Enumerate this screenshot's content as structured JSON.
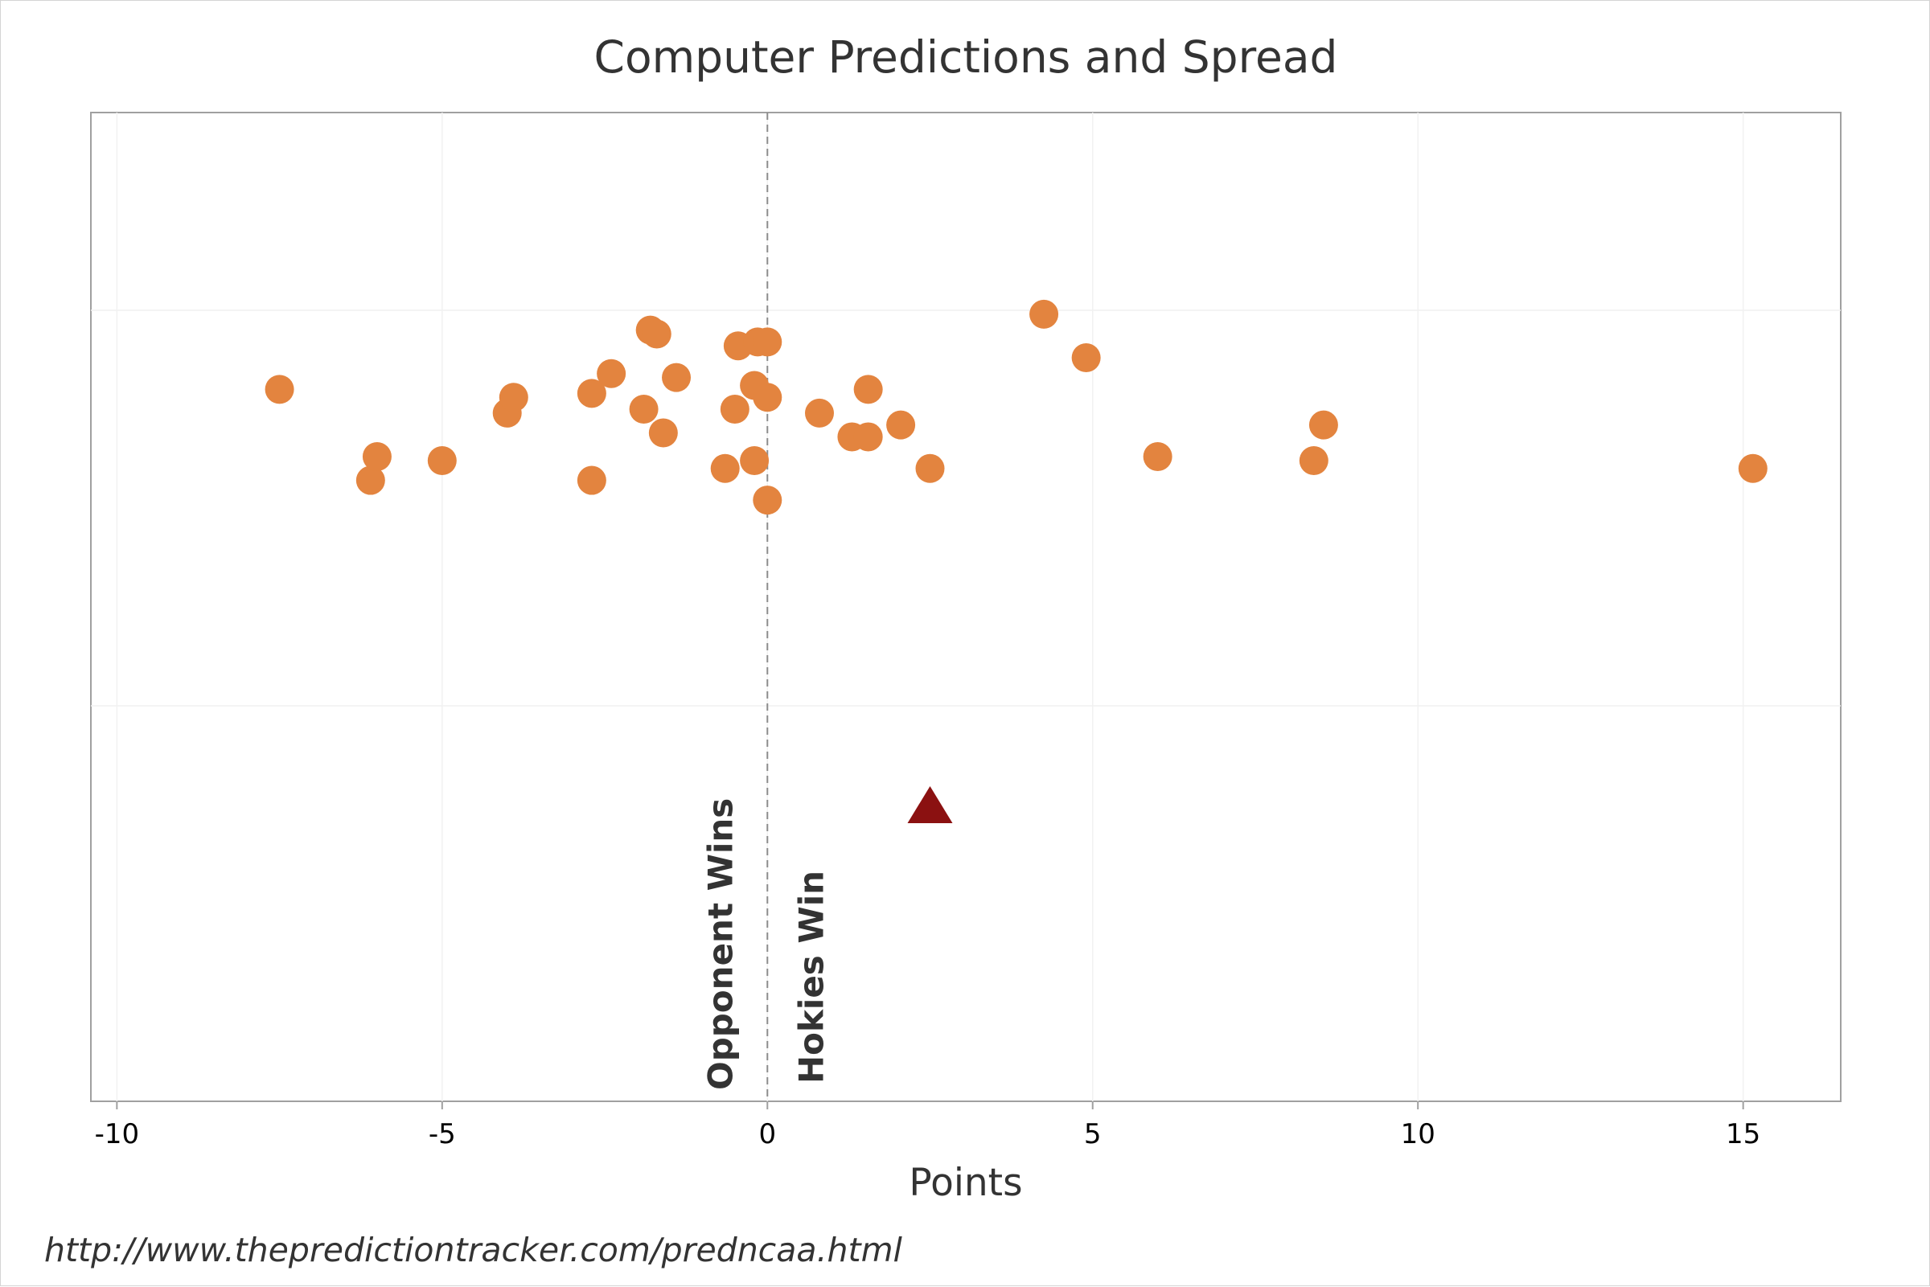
{
  "chart_data": {
    "type": "scatter",
    "title": "Computer Predictions and Spread",
    "xlabel": "Points",
    "ylabel": "",
    "xlim": [
      -10.4,
      16.5
    ],
    "ylim": [
      0,
      2.5
    ],
    "x_ticks": [
      -10,
      -5,
      0,
      5,
      10,
      15
    ],
    "x_tick_labels": [
      "-10",
      "-5",
      "0",
      "5",
      "10",
      "15"
    ],
    "grid": true,
    "reference_line": {
      "x": 0,
      "style": "dashed"
    },
    "annotations": {
      "left": "Opponent Wins",
      "right": "Hokies Win"
    },
    "series": [
      {
        "marker": "circle",
        "color": "#E3843F",
        "points": [
          {
            "x": -7.5,
            "y": 1.8
          },
          {
            "x": -6.1,
            "y": 1.57
          },
          {
            "x": -6.0,
            "y": 1.63
          },
          {
            "x": -5.0,
            "y": 1.62
          },
          {
            "x": -4.0,
            "y": 1.74
          },
          {
            "x": -3.9,
            "y": 1.78
          },
          {
            "x": -2.7,
            "y": 1.57
          },
          {
            "x": -2.7,
            "y": 1.79
          },
          {
            "x": -2.4,
            "y": 1.84
          },
          {
            "x": -1.9,
            "y": 1.75
          },
          {
            "x": -1.8,
            "y": 1.95
          },
          {
            "x": -1.7,
            "y": 1.94
          },
          {
            "x": -1.6,
            "y": 1.69
          },
          {
            "x": -1.4,
            "y": 1.83
          },
          {
            "x": -0.65,
            "y": 1.6
          },
          {
            "x": -0.5,
            "y": 1.75
          },
          {
            "x": -0.45,
            "y": 1.91
          },
          {
            "x": -0.2,
            "y": 1.62
          },
          {
            "x": -0.2,
            "y": 1.81
          },
          {
            "x": -0.15,
            "y": 1.92
          },
          {
            "x": 0.0,
            "y": 1.92
          },
          {
            "x": 0.0,
            "y": 1.78
          },
          {
            "x": 0.0,
            "y": 1.52
          },
          {
            "x": 0.8,
            "y": 1.74
          },
          {
            "x": 1.3,
            "y": 1.68
          },
          {
            "x": 1.55,
            "y": 1.68
          },
          {
            "x": 1.55,
            "y": 1.8
          },
          {
            "x": 2.05,
            "y": 1.71
          },
          {
            "x": 2.5,
            "y": 1.6
          },
          {
            "x": 4.25,
            "y": 1.99
          },
          {
            "x": 4.9,
            "y": 1.88
          },
          {
            "x": 6.0,
            "y": 1.63
          },
          {
            "x": 8.4,
            "y": 1.62
          },
          {
            "x": 8.55,
            "y": 1.71
          },
          {
            "x": 15.15,
            "y": 1.6
          }
        ]
      },
      {
        "marker": "triangle",
        "color": "#8B1111",
        "points": [
          {
            "x": 2.5,
            "y": 0.75
          }
        ]
      }
    ]
  },
  "footer": {
    "source_url": "http://www.thepredictiontracker.com/predncaa.html"
  }
}
